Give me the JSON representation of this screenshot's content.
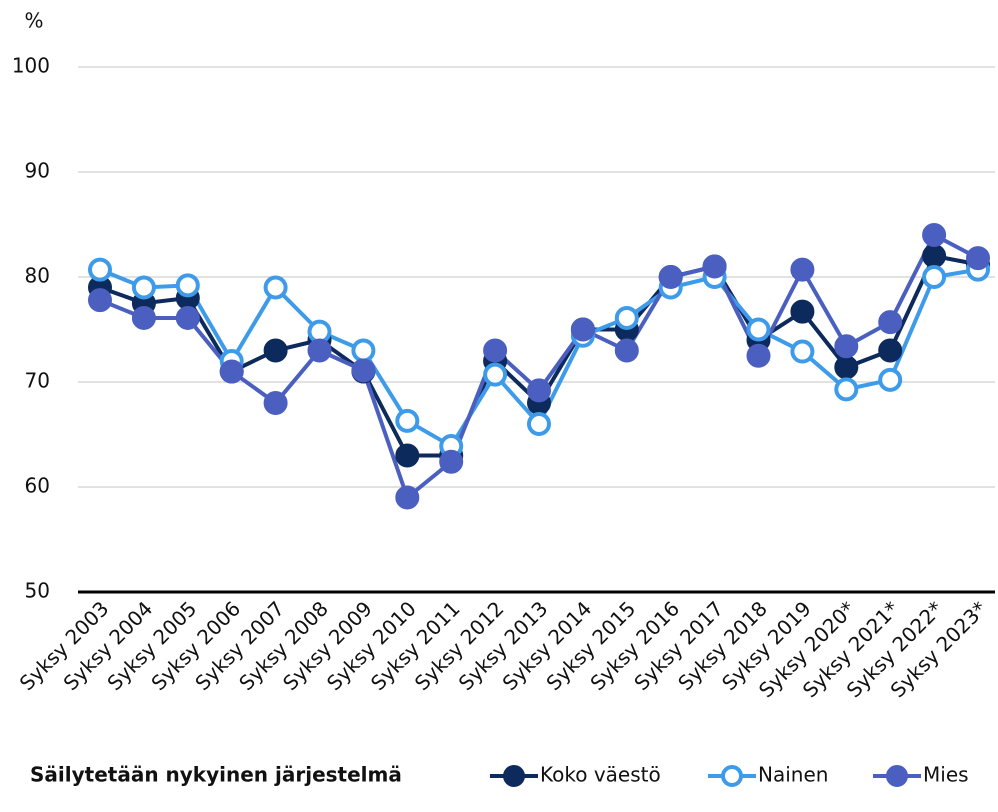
{
  "chart_data": {
    "type": "line",
    "y_label": "%",
    "legend_title": "Säilytetään nykyinen järjestelmä",
    "categories": [
      "Syksy 2003",
      "Syksy 2004",
      "Syksy 2005",
      "Syksy 2006",
      "Syksy 2007",
      "Syksy 2008",
      "Syksy 2009",
      "Syksy 2010",
      "Syksy 2011",
      "Syksy 2012",
      "Syksy 2013",
      "Syksy 2014",
      "Syksy 2015",
      "Syksy 2016",
      "Syksy 2017",
      "Syksy 2018",
      "Syksy 2019",
      "Syksy 2020*",
      "Syksy 2021*",
      "Syksy 2022*",
      "Syksy 2023*"
    ],
    "series": [
      {
        "name": "Koko väestö",
        "color": "#0d2a5c",
        "marker_fill": "#0d2a5c",
        "values": [
          79,
          77.5,
          78,
          71,
          73,
          74,
          71,
          63,
          63,
          72,
          68,
          75,
          75,
          80,
          81,
          74,
          76.7,
          71.4,
          73,
          82,
          81.2
        ]
      },
      {
        "name": "Nainen",
        "color": "#3d9be9",
        "marker_fill": "#ffffff",
        "values": [
          80.7,
          79,
          79.2,
          72,
          79,
          74.8,
          73,
          66.3,
          63.9,
          70.7,
          66,
          74.4,
          76.1,
          79,
          80,
          75,
          72.9,
          69.3,
          70.2,
          80,
          80.7
        ]
      },
      {
        "name": "Mies",
        "color": "#4a5fbf",
        "marker_fill": "#4a5fbf",
        "values": [
          77.8,
          76.1,
          76.1,
          71,
          68,
          73,
          71.1,
          59,
          62.4,
          73,
          69.2,
          75,
          73,
          80,
          81,
          72.5,
          80.7,
          73.4,
          75.7,
          84,
          81.8
        ]
      }
    ],
    "ylim": [
      50,
      100
    ],
    "yticks": [
      50,
      60,
      70,
      80,
      90,
      100
    ],
    "grid": true
  }
}
